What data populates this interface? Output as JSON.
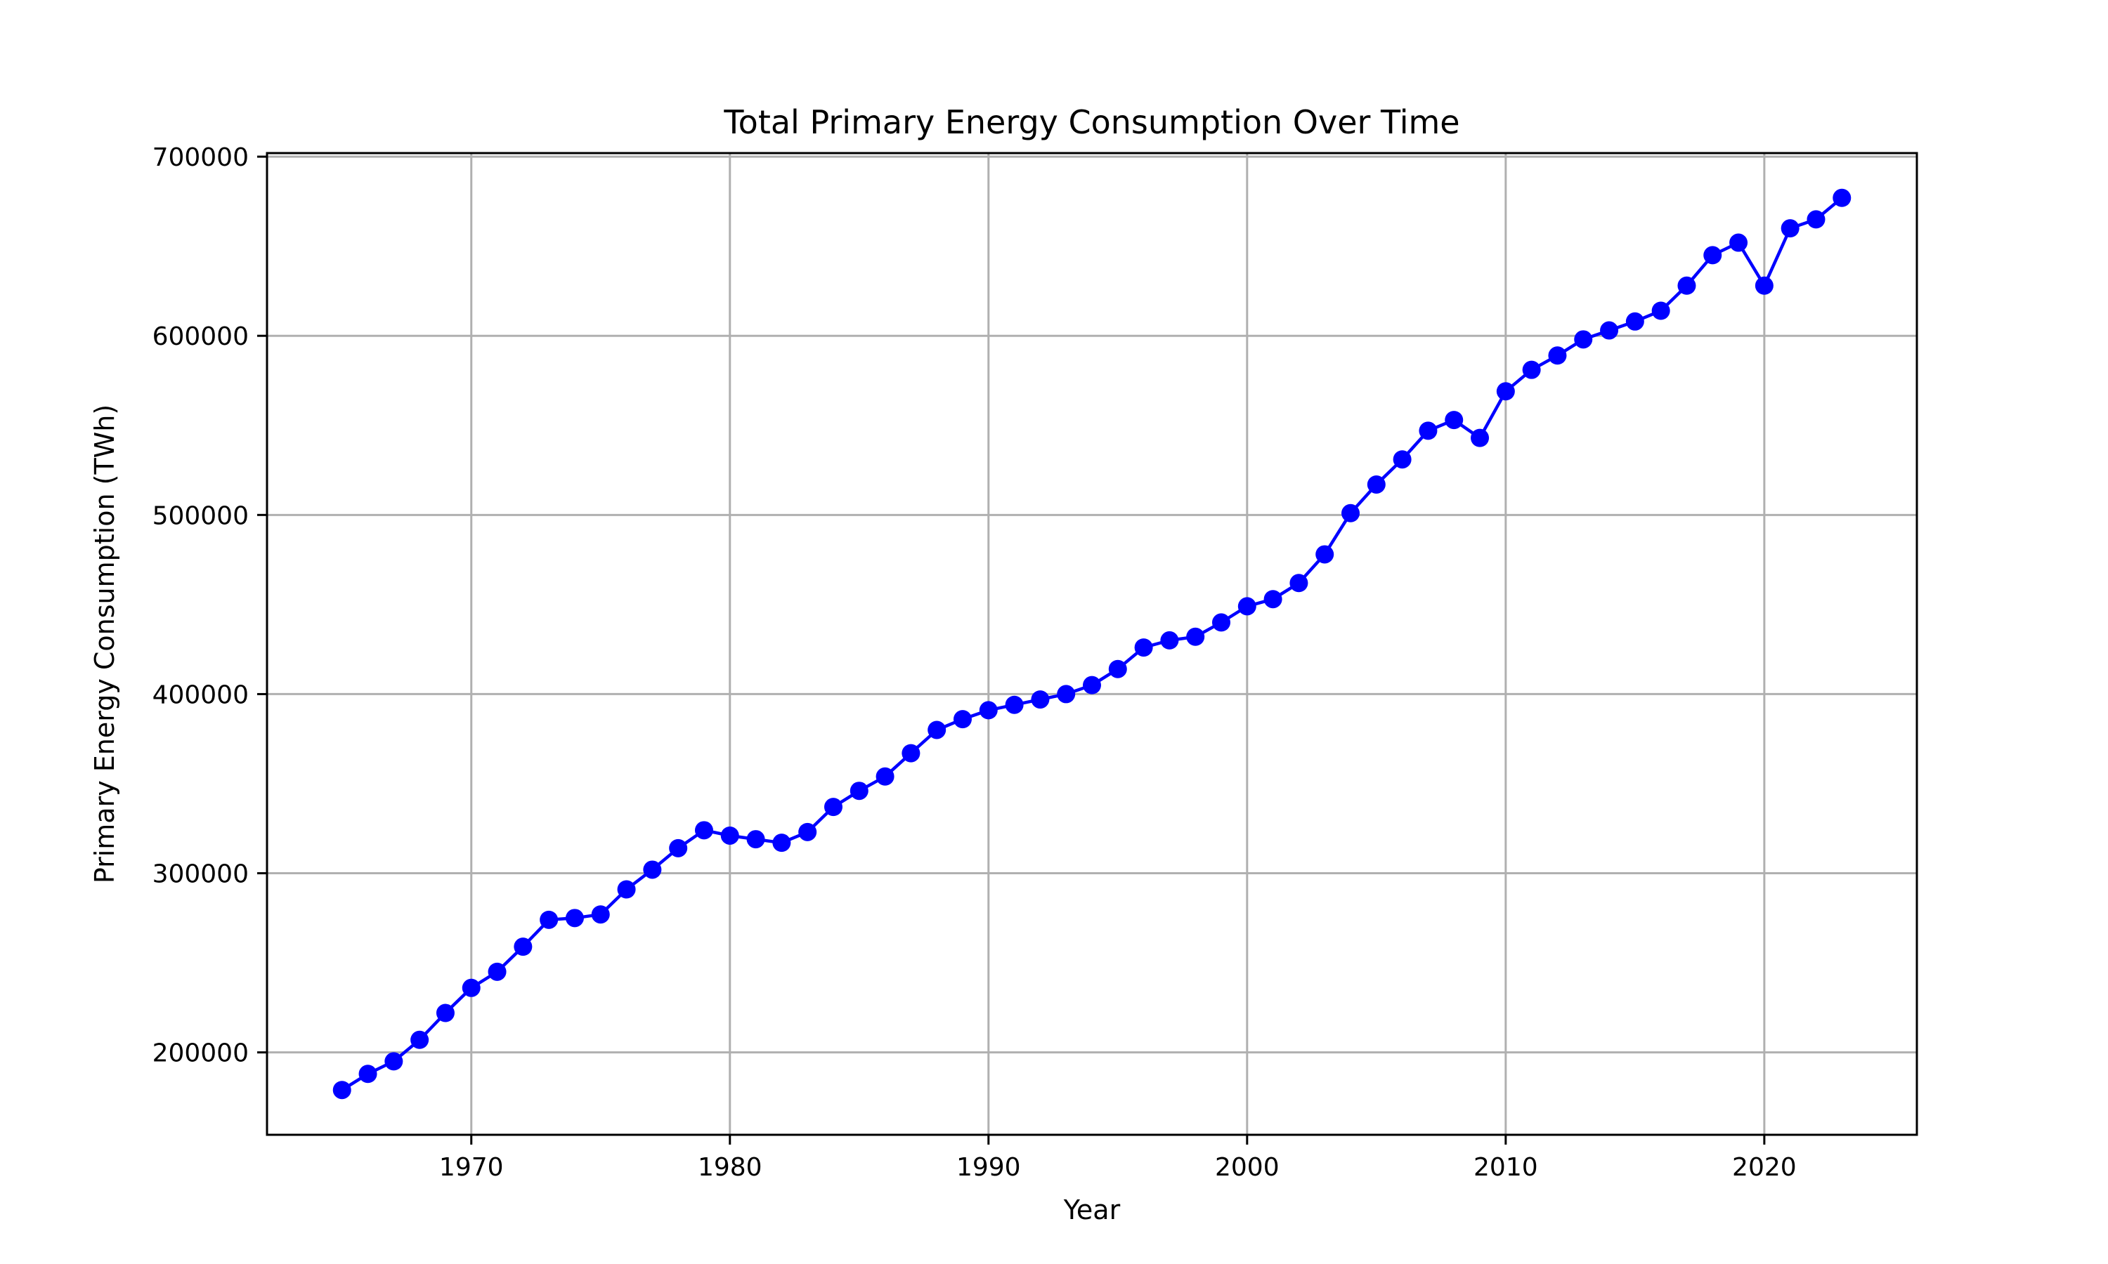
{
  "chart_data": {
    "type": "line",
    "title": "Total Primary Energy Consumption Over Time",
    "xlabel": "Year",
    "ylabel": "Primary Energy Consumption (TWh)",
    "xlim": [
      1962.1,
      2025.9
    ],
    "ylim": [
      154000,
      702000
    ],
    "xticks": [
      1970,
      1980,
      1990,
      2000,
      2010,
      2020
    ],
    "yticks": [
      200000,
      300000,
      400000,
      500000,
      600000,
      700000
    ],
    "xtick_labels": [
      "1970",
      "1980",
      "1990",
      "2000",
      "2010",
      "2020"
    ],
    "ytick_labels": [
      "200000",
      "300000",
      "400000",
      "500000",
      "600000",
      "700000"
    ],
    "grid": true,
    "legend": "none",
    "colors": {
      "series": "#0000ff",
      "grid": "#b0b0b0",
      "axes": "#000000"
    },
    "series": [
      {
        "marker": "circle",
        "x": [
          1965,
          1966,
          1967,
          1968,
          1969,
          1970,
          1971,
          1972,
          1973,
          1974,
          1975,
          1976,
          1977,
          1978,
          1979,
          1980,
          1981,
          1982,
          1983,
          1984,
          1985,
          1986,
          1987,
          1988,
          1989,
          1990,
          1991,
          1992,
          1993,
          1994,
          1995,
          1996,
          1997,
          1998,
          1999,
          2000,
          2001,
          2002,
          2003,
          2004,
          2005,
          2006,
          2007,
          2008,
          2009,
          2010,
          2011,
          2012,
          2013,
          2014,
          2015,
          2016,
          2017,
          2018,
          2019,
          2020,
          2021,
          2022,
          2023
        ],
        "y": [
          179000,
          188000,
          195000,
          207000,
          222000,
          236000,
          245000,
          259000,
          274000,
          275000,
          277000,
          291000,
          302000,
          314000,
          324000,
          321000,
          319000,
          317000,
          323000,
          337000,
          346000,
          354000,
          367000,
          380000,
          386000,
          391000,
          394000,
          397000,
          400000,
          405000,
          414000,
          426000,
          430000,
          432000,
          440000,
          449000,
          453000,
          462000,
          478000,
          501000,
          517000,
          531000,
          547000,
          553000,
          543000,
          569000,
          581000,
          589000,
          598000,
          603000,
          608000,
          614000,
          628000,
          645000,
          652000,
          628000,
          660000,
          665000,
          677000
        ]
      }
    ]
  }
}
